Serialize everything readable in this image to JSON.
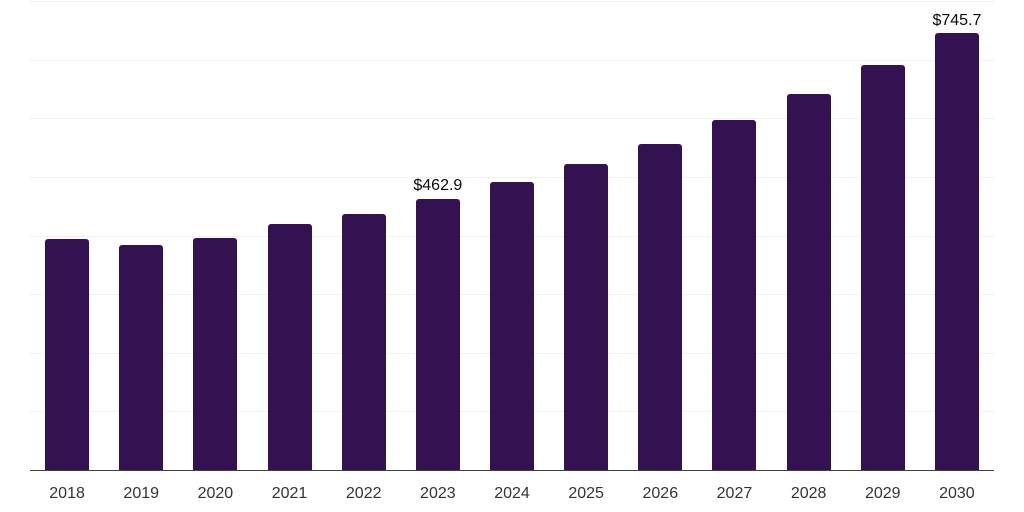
{
  "chart_data": {
    "type": "bar",
    "title": "",
    "categories": [
      "2018",
      "2019",
      "2020",
      "2021",
      "2022",
      "2023",
      "2024",
      "2025",
      "2026",
      "2027",
      "2028",
      "2029",
      "2030"
    ],
    "values": [
      393.7,
      383.9,
      395.6,
      418.8,
      436.0,
      462.9,
      491.8,
      522.5,
      556.6,
      596.4,
      640.6,
      690.4,
      745.7
    ],
    "value_labels": {
      "2023": "$462.9",
      "2030": "$745.7"
    },
    "xlabel": "",
    "ylabel": "",
    "ylim": [
      0,
      800
    ],
    "grid_step": 100,
    "gridlines": "horizontal",
    "legend": "none",
    "colors": {
      "bar": "#341150",
      "gridline": "#f0f0f0",
      "axis_line": "#404040",
      "tick_label": "#333333",
      "value_label": "#0a0a0a"
    }
  }
}
